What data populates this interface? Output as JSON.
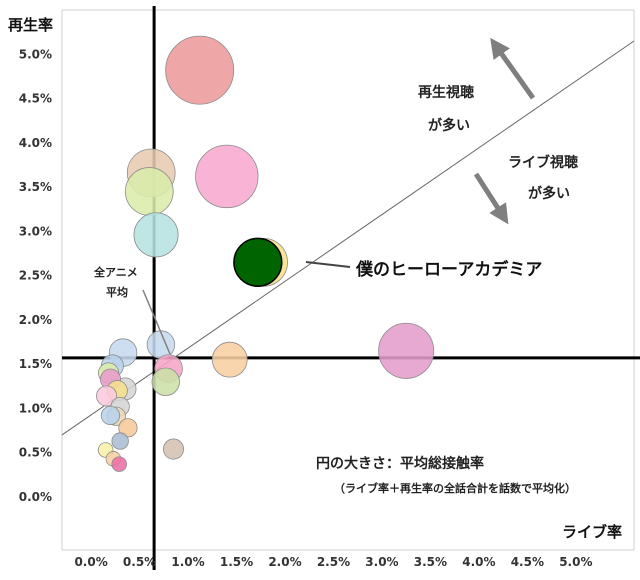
{
  "chart_data": {
    "type": "scatter",
    "title": "",
    "xlabel": "ライブ率",
    "ylabel": "再生率",
    "xlim": [
      -0.3,
      5.6
    ],
    "ylim": [
      -0.6,
      5.5
    ],
    "x_ticks": [
      "0.0%",
      "0.5%",
      "1.0%",
      "1.5%",
      "2.0%",
      "2.5%",
      "3.0%",
      "3.5%",
      "4.0%",
      "4.5%",
      "5.0%"
    ],
    "y_ticks": [
      "0.0%",
      "0.5%",
      "1.0%",
      "1.5%",
      "2.0%",
      "2.5%",
      "3.0%",
      "3.5%",
      "4.0%",
      "4.5%",
      "5.0%"
    ],
    "x_tick_values": [
      0,
      0.5,
      1.0,
      1.5,
      2.0,
      2.5,
      3.0,
      3.5,
      4.0,
      4.5,
      5.0
    ],
    "y_tick_values": [
      0,
      0.5,
      1.0,
      1.5,
      2.0,
      2.5,
      3.0,
      3.5,
      4.0,
      4.5,
      5.0
    ],
    "average_lines": {
      "live_rate": 0.65,
      "play_rate": 1.57
    },
    "diagonal": {
      "from": [
        -0.3,
        0.7
      ],
      "to": [
        5.6,
        5.15
      ]
    },
    "size_note": "円の大きさ：平均総接触率",
    "size_note_sub": "（ライブ率＋再生率の全話合計を話数で平均化）",
    "zone_upper": [
      "再生視聴",
      "が多い"
    ],
    "zone_lower": [
      "ライブ視聴",
      "が多い"
    ],
    "average_label": [
      "全アニメ",
      "平均"
    ],
    "highlight_label": "僕のヒーローアカデミア",
    "colors": {
      "avg_line": "#000000",
      "diagonal": "#666666",
      "arrow": "#7f7f7f",
      "highlight": "#006400"
    },
    "points": [
      {
        "name": "僕のヒーローアカデミア",
        "x": 1.78,
        "y": 2.65,
        "size": 2.6,
        "color": "#f5e08a",
        "highlight": false
      },
      {
        "name": "僕のヒーローアカデミア",
        "x": 1.72,
        "y": 2.65,
        "size": 2.6,
        "color": "#006400",
        "highlight": true
      },
      {
        "name": "",
        "x": 1.12,
        "y": 4.82,
        "size": 3.7,
        "color": "#ec9a9a"
      },
      {
        "name": "",
        "x": 1.4,
        "y": 3.62,
        "size": 3.4,
        "color": "#f8a8cf"
      },
      {
        "name": "",
        "x": 3.25,
        "y": 1.65,
        "size": 3.0,
        "color": "#e49ccc"
      },
      {
        "name": "",
        "x": 0.62,
        "y": 3.66,
        "size": 2.6,
        "color": "#e8c9b0"
      },
      {
        "name": "",
        "x": 0.6,
        "y": 3.45,
        "size": 2.6,
        "color": "#d9ecaa"
      },
      {
        "name": "",
        "x": 0.67,
        "y": 2.96,
        "size": 2.4,
        "color": "#b6e3e1"
      },
      {
        "name": "",
        "x": 1.43,
        "y": 1.55,
        "size": 1.9,
        "color": "#f8cfa2"
      },
      {
        "name": "",
        "x": 0.72,
        "y": 1.72,
        "size": 1.5,
        "color": "#c6d9ee"
      },
      {
        "name": "",
        "x": 0.33,
        "y": 1.63,
        "size": 1.5,
        "color": "#c6d9ee"
      },
      {
        "name": "",
        "x": 0.8,
        "y": 1.45,
        "size": 1.5,
        "color": "#f6a6c8"
      },
      {
        "name": "",
        "x": 0.77,
        "y": 1.3,
        "size": 1.5,
        "color": "#cbe0a6"
      },
      {
        "name": "",
        "x": 0.35,
        "y": 1.22,
        "size": 1.2,
        "color": "#d5d5d5"
      },
      {
        "name": "",
        "x": 0.22,
        "y": 1.48,
        "size": 1.2,
        "color": "#b8d3ea"
      },
      {
        "name": "",
        "x": 0.18,
        "y": 1.4,
        "size": 1.1,
        "color": "#d9ecaa"
      },
      {
        "name": "",
        "x": 0.2,
        "y": 1.33,
        "size": 1.1,
        "color": "#e89cc9"
      },
      {
        "name": "",
        "x": 0.27,
        "y": 1.2,
        "size": 1.1,
        "color": "#f5e08a"
      },
      {
        "name": "",
        "x": 0.16,
        "y": 1.14,
        "size": 1.1,
        "color": "#fbc9dd"
      },
      {
        "name": "",
        "x": 0.3,
        "y": 1.02,
        "size": 1.0,
        "color": "#d5d5d5"
      },
      {
        "name": "",
        "x": 0.26,
        "y": 0.91,
        "size": 1.0,
        "color": "#ead9b8"
      },
      {
        "name": "",
        "x": 0.2,
        "y": 0.92,
        "size": 1.0,
        "color": "#b8d3ea"
      },
      {
        "name": "",
        "x": 0.38,
        "y": 0.78,
        "size": 1.0,
        "color": "#f8c89a"
      },
      {
        "name": "",
        "x": 0.3,
        "y": 0.63,
        "size": 0.9,
        "color": "#a9bdd0"
      },
      {
        "name": "",
        "x": 0.15,
        "y": 0.53,
        "size": 0.8,
        "color": "#f8f0a8"
      },
      {
        "name": "",
        "x": 0.23,
        "y": 0.43,
        "size": 0.8,
        "color": "#f8cfa2"
      },
      {
        "name": "",
        "x": 0.29,
        "y": 0.37,
        "size": 0.8,
        "color": "#ec6fa6"
      },
      {
        "name": "",
        "x": 0.85,
        "y": 0.54,
        "size": 1.1,
        "color": "#d5c2b2"
      }
    ]
  }
}
